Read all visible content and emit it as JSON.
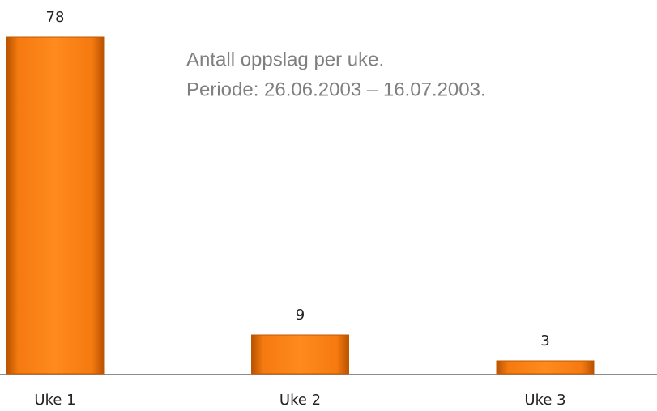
{
  "chart_data": {
    "type": "bar",
    "title": "Antall oppslag per uke.",
    "subtitle": "Periode: 26.06.2003 – 16.07.2003.",
    "categories": [
      "Uke 1",
      "Uke 2",
      "Uke 3"
    ],
    "values": [
      78,
      9,
      3
    ],
    "color": "#f57a10"
  }
}
